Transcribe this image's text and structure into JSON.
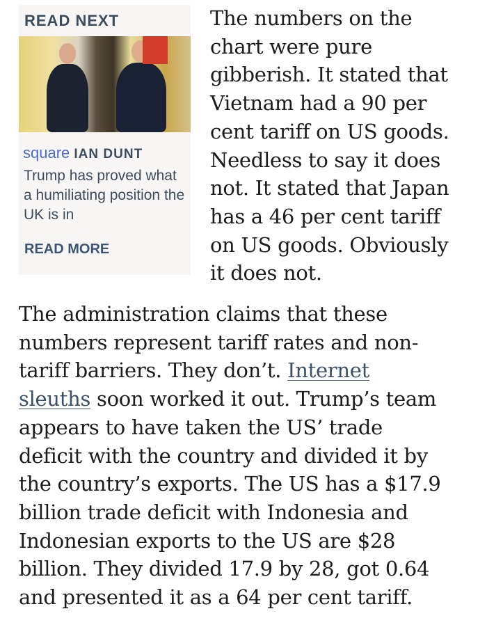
{
  "read_next": {
    "title": "READ NEXT",
    "image_alt": "Keir Starmer and Donald Trump seated in the Oval Office",
    "kicker": "square",
    "author": "IAN DUNT",
    "headline": "Trump has proved what a humiliating position the UK is in",
    "read_more": "READ MORE"
  },
  "article": {
    "paragraph1_lines": [
      [
        {
          "t": "The numbers on the"
        }
      ],
      [
        {
          "t": "chart were pure"
        }
      ],
      [
        {
          "t": "gibberish. It stated that"
        }
      ],
      [
        {
          "t": "Vietnam had a 90 per"
        }
      ],
      [
        {
          "t": "cent tariff on US goods."
        }
      ],
      [
        {
          "t": "Needless to say it does"
        }
      ],
      [
        {
          "t": "not. It stated that Japan"
        }
      ],
      [
        {
          "t": "has a 46 per cent tariff"
        }
      ],
      [
        {
          "t": "on US goods. Obviously"
        }
      ],
      [
        {
          "t": "it does not."
        }
      ]
    ],
    "paragraph2_lines": [
      [
        {
          "t": "The administration claims that these"
        }
      ],
      [
        {
          "t": "numbers represent tariff rates and non-"
        }
      ],
      [
        {
          "t": "tariff barriers. They don’t. "
        },
        {
          "t": "Internet",
          "link": true
        }
      ],
      [
        {
          "t": "sleuths",
          "link": true
        },
        {
          "t": " soon worked it out. Trump’s team"
        }
      ],
      [
        {
          "t": "appears to have taken the US’ trade"
        }
      ],
      [
        {
          "t": "deficit with the country and divided it by"
        }
      ],
      [
        {
          "t": "the country’s exports. The US has a $17.9"
        }
      ],
      [
        {
          "t": "billion trade deficit with Indonesia and"
        }
      ],
      [
        {
          "t": "Indonesian exports to the US are $28"
        }
      ],
      [
        {
          "t": "billion. They divided 17.9 by 28, got 0.64"
        }
      ],
      [
        {
          "t": "and presented it as a 64 per cent tariff."
        }
      ]
    ]
  }
}
